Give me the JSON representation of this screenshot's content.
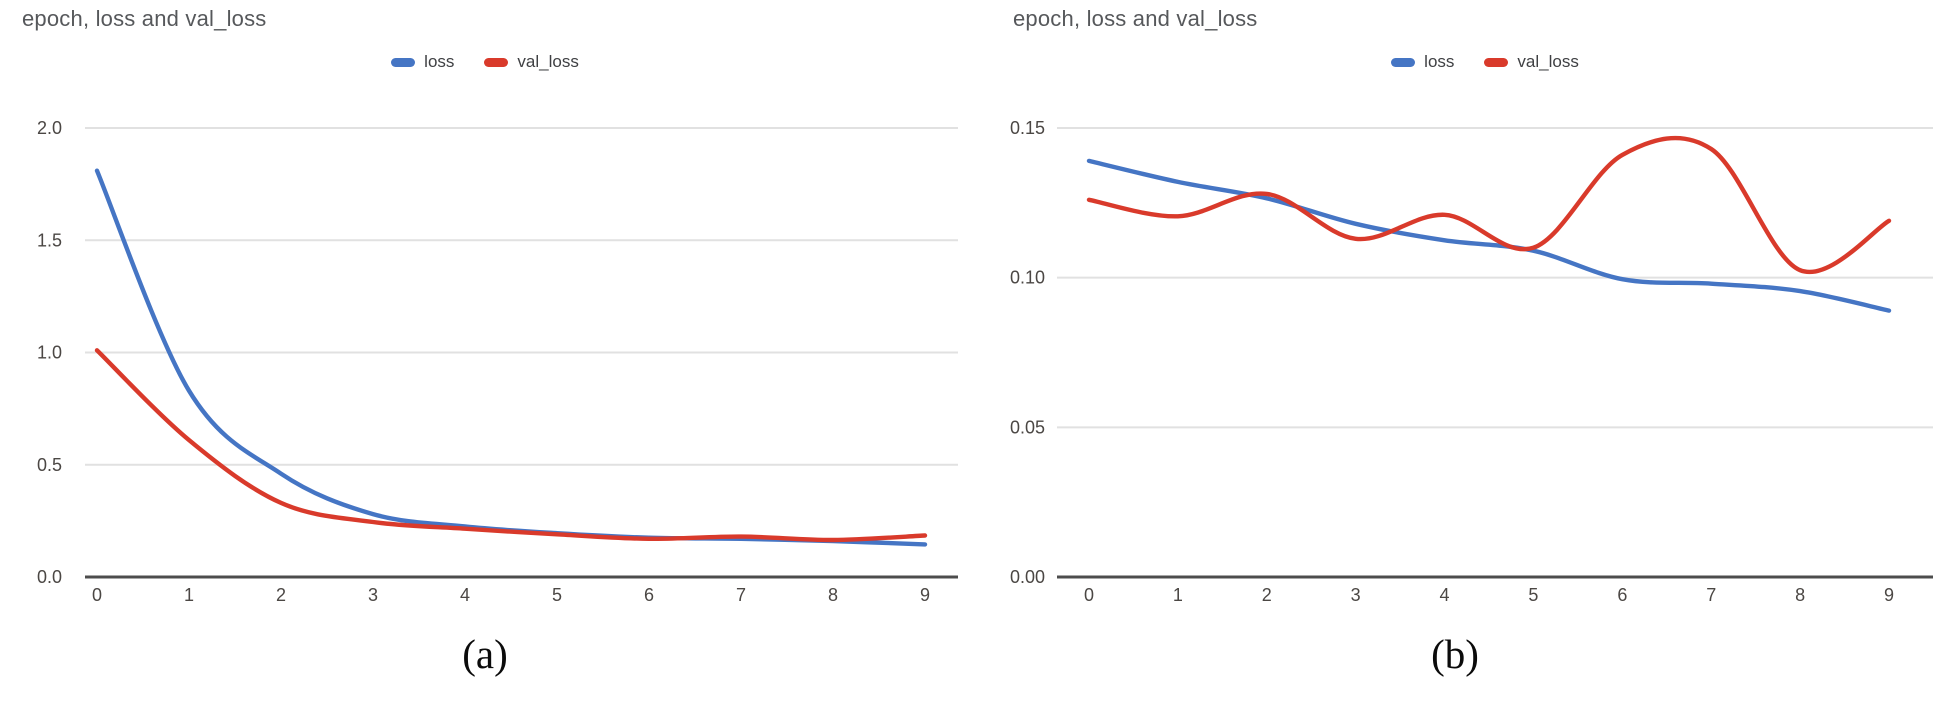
{
  "page": {
    "background": "#ffffff"
  },
  "colors": {
    "loss": "#4575c4",
    "val_loss": "#d93a2b",
    "gridline": "#e1e1e1",
    "axis_line": "#4d4d4d",
    "title_text": "#56585b",
    "tick_text": "#4b4744",
    "legend_text": "#3f4043"
  },
  "chart_data": [
    {
      "id": "a",
      "type": "line",
      "title": "epoch, loss and val_loss",
      "caption": "(a)",
      "xlabel": "",
      "ylabel": "",
      "x": [
        "0",
        "1",
        "2",
        "3",
        "4",
        "5",
        "6",
        "7",
        "8",
        "9"
      ],
      "ylim": [
        0,
        2.0
      ],
      "yticks": [
        0,
        0.5,
        1.0,
        1.5,
        2.0
      ],
      "ytick_labels": [
        "0.0",
        "0.5",
        "1.0",
        "1.5",
        "2.0"
      ],
      "grid": true,
      "smooth": true,
      "legend_position": "top",
      "series": [
        {
          "name": "loss",
          "color": "#4575c4",
          "values": [
            1.81,
            0.83,
            0.46,
            0.28,
            0.225,
            0.195,
            0.175,
            0.17,
            0.16,
            0.145
          ]
        },
        {
          "name": "val_loss",
          "color": "#d93a2b",
          "values": [
            1.01,
            0.61,
            0.33,
            0.245,
            0.215,
            0.19,
            0.17,
            0.18,
            0.165,
            0.185
          ]
        }
      ]
    },
    {
      "id": "b",
      "type": "line",
      "title": "epoch, loss and val_loss",
      "caption": "(b)",
      "xlabel": "",
      "ylabel": "",
      "x": [
        "0",
        "1",
        "2",
        "3",
        "4",
        "5",
        "6",
        "7",
        "8",
        "9"
      ],
      "ylim": [
        0,
        0.15
      ],
      "yticks": [
        0,
        0.05,
        0.1,
        0.15
      ],
      "ytick_labels": [
        "0.00",
        "0.05",
        "0.10",
        "0.15"
      ],
      "grid": true,
      "smooth": true,
      "legend_position": "top",
      "series": [
        {
          "name": "loss",
          "color": "#4575c4",
          "values": [
            0.139,
            0.132,
            0.1265,
            0.118,
            0.1125,
            0.109,
            0.0995,
            0.098,
            0.0955,
            0.089
          ]
        },
        {
          "name": "val_loss",
          "color": "#d93a2b",
          "values": [
            0.126,
            0.1205,
            0.128,
            0.113,
            0.121,
            0.11,
            0.141,
            0.143,
            0.1025,
            0.119
          ]
        }
      ]
    }
  ]
}
